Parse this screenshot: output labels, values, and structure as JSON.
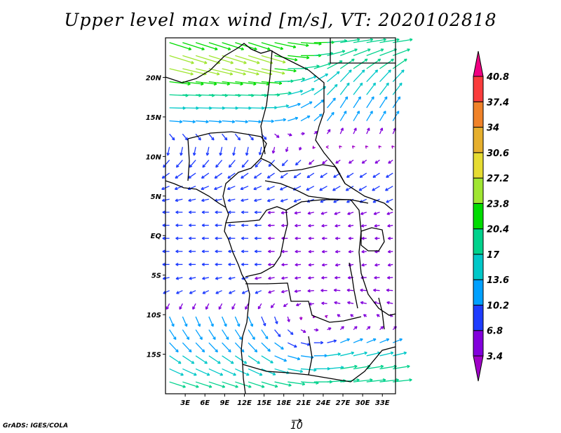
{
  "title": "Upper level max wind [m/s], VT: 2020102818",
  "credit": "GrADS: IGES/COLA",
  "reference_vector": {
    "label": "10",
    "value": 10
  },
  "chart_data": {
    "type": "vector-field",
    "title": "Upper level max wind [m/s], VT: 2020102818",
    "lon_range": [
      0,
      35
    ],
    "lat_range": [
      -20,
      25
    ],
    "x_ticks": [
      "3E",
      "6E",
      "9E",
      "12E",
      "15E",
      "18E",
      "21E",
      "24E",
      "27E",
      "30E",
      "33E"
    ],
    "x_tick_values": [
      3,
      6,
      9,
      12,
      15,
      18,
      21,
      24,
      27,
      30,
      33
    ],
    "y_ticks": [
      "20N",
      "15N",
      "10N",
      "5N",
      "EQ",
      "5S",
      "10S",
      "15S"
    ],
    "y_tick_values": [
      20,
      15,
      10,
      5,
      0,
      -5,
      -10,
      -15
    ],
    "grid_spacing_deg": [
      2,
      1.65
    ],
    "wind_bands": [
      {
        "lat": 24.5,
        "west": [
          22,
          -7
        ],
        "east": [
          20,
          3
        ]
      },
      {
        "lat": 22,
        "west": [
          26,
          -8
        ],
        "east": [
          16,
          8
        ]
      },
      {
        "lat": 20,
        "west": [
          22,
          -3
        ],
        "east": [
          12,
          12
        ]
      },
      {
        "lat": 17,
        "west": [
          18,
          0
        ],
        "east": [
          8,
          12
        ]
      },
      {
        "lat": 14.5,
        "west": [
          13,
          -1
        ],
        "east": [
          6,
          10
        ]
      },
      {
        "lat": 12,
        "west": [
          1,
          -9
        ],
        "east": [
          1,
          4
        ]
      },
      {
        "lat": 10,
        "west": [
          -6,
          -8
        ],
        "east": [
          -4,
          -3
        ]
      },
      {
        "lat": 7,
        "west": [
          -8,
          -4
        ],
        "east": [
          -8,
          -5
        ]
      },
      {
        "lat": 3,
        "west": [
          -7,
          0
        ],
        "east": [
          -6,
          -2
        ]
      },
      {
        "lat": 0,
        "west": [
          -7,
          0
        ],
        "east": [
          -5,
          0
        ]
      },
      {
        "lat": -4,
        "west": [
          -7,
          0
        ],
        "east": [
          -5,
          -1
        ]
      },
      {
        "lat": -8,
        "west": [
          -6,
          -4
        ],
        "east": [
          -7,
          1
        ]
      },
      {
        "lat": -10,
        "west": [
          4,
          -10
        ],
        "east": [
          -4,
          2
        ]
      },
      {
        "lat": -13,
        "west": [
          8,
          -10
        ],
        "east": [
          8,
          4
        ]
      },
      {
        "lat": -16,
        "west": [
          13,
          -7
        ],
        "east": [
          16,
          3
        ]
      },
      {
        "lat": -19,
        "west": [
          17,
          -5
        ],
        "east": [
          20,
          2
        ]
      }
    ],
    "colorbar": {
      "labels": [
        "3.4",
        "6.8",
        "10.2",
        "13.6",
        "17",
        "20.4",
        "23.8",
        "27.2",
        "30.6",
        "34",
        "37.4",
        "40.8"
      ],
      "levels": [
        3.4,
        6.8,
        10.2,
        13.6,
        17,
        20.4,
        23.8,
        27.2,
        30.6,
        34,
        37.4,
        40.8
      ],
      "colors": [
        "#a000c8",
        "#8200dc",
        "#1e3cff",
        "#00a0ff",
        "#00c8c8",
        "#00d28c",
        "#00dc00",
        "#a0e632",
        "#e6dc32",
        "#e6af2d",
        "#f08228",
        "#fa3c3c",
        "#f00082"
      ]
    }
  }
}
